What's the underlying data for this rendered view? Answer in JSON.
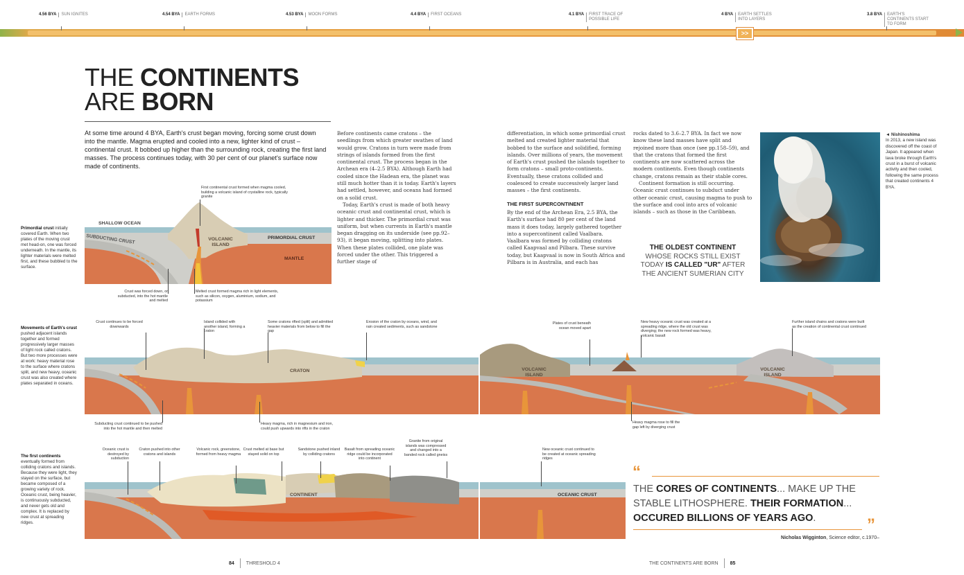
{
  "timeline": [
    {
      "date": "4.56 BYA",
      "label": "SUN IGNITES"
    },
    {
      "date": "4.54 BYA",
      "label": "EARTH FORMS"
    },
    {
      "date": "4.53 BYA",
      "label": "MOON FORMS"
    },
    {
      "date": "4.4 BYA",
      "label": "FIRST OCEANS"
    },
    {
      "date": "4.1 BYA",
      "label": "FIRST TRACE OF POSSIBLE LIFE"
    },
    {
      "date": "4 BYA",
      "label": "EARTH SETTLES INTO LAYERS"
    },
    {
      "date": "3.8 BYA",
      "label": "EARTH'S CONTINENTS START TO FORM"
    }
  ],
  "timeline_current_marker": ">>",
  "title": {
    "line1_light": "THE",
    "line1_bold": "CONTINENTS",
    "line2_light": "ARE",
    "line2_bold": "BORN"
  },
  "intro": "At some time around 4 BYA, Earth's crust began moving, forcing some crust down into the mantle. Magma erupted and cooled into a new, lighter kind of crust – continental crust. It bobbed up higher than the surrounding rock, creating the first land masses. The process continues today, with 30 per cent of our planet's surface now made of continents.",
  "body": {
    "col1_p1": "Before continents came cratons – the seedlings from which greater swathes of land would grow. Cratons in turn were made from strings of islands formed from the first continental crust. The process began in the Archean era (4–2.5 BYA). Although Earth had cooled since the Hadean era, the planet was still much hotter than it is today. Earth's layers had settled, however, and oceans had formed on a solid crust.",
    "col1_p2": "Today, Earth's crust is made of both heavy oceanic crust and continental crust, which is lighter and thicker. The primordial crust was uniform, but when currents in Earth's mantle began dragging on its underside (see pp.92–93), it began moving, splitting into plates. When these plates collided, one plate was forced under the other. This triggered a further stage of",
    "col2_p1": "differentiation, in which some primordial crust melted and created lighter material that bobbed to the surface and solidified, forming islands. Over millions of years, the movement of Earth's crust pushed the islands together to form cratons – small proto-continents. Eventually, these cratons collided and coalesced to create successively larger land masses – the first continents.",
    "col2_heading": "THE FIRST SUPERCONTINENT",
    "col2_p2": "By the end of the Archean Era, 2.5 BYA, the Earth's surface had 80 per cent of the land mass it does today, largely gathered together into a supercontinent called Vaalbara. Vaalbara was formed by colliding cratons called Kaapvaal and Pilbara. These survive today, but Kaapvaal is now in South Africa and Pilbara is in Australia, and each has",
    "col3_p1": "rocks dated to 3.6–2.7 BYA. In fact we now know these land masses have split and rejoined more than once (see pp.158–59), and that the cratons that formed the first continents are now scattered across the modern continents. Even though continents change, cratons remain as their stable cores.",
    "col3_p2": "Continent formation is still occurring. Oceanic crust continues to subduct under other oceanic crust, causing magma to push to the surface and cool into arcs of volcanic islands – such as those in the Caribbean."
  },
  "callout": {
    "bold1": "THE OLDEST CONTINENT",
    "light1": "WHOSE ROCKS STILL EXIST TODAY",
    "bold2": "IS CALLED \"UR\"",
    "light2": "AFTER THE ANCIENT SUMERIAN CITY"
  },
  "photo_caption": {
    "title": "◄ Nishinoshima",
    "text": "In 2013, a new island was discovered off the coast of Japan. It appeared when lava broke through Earth's crust in a burst of volcanic activity and then cooled, following the same process that created continents 4 BYA."
  },
  "side_notes": [
    {
      "bold": "Primordial crust",
      "text": " initially covered Earth. When two plates of the moving crust met head-on, one was forced underneath. In the mantle, its lighter materials were melted first, and these bubbled to the surface."
    },
    {
      "bold": "Movements of Earth's crust",
      "text": " pushed adjacent islands together and formed progressively larger masses of light rock called cratons. But two more processes were at work: heavy material rose to the surface where cratons split, and new heavy, oceanic crust was also created where plates separated in oceans."
    },
    {
      "bold": "The first continents",
      "text": " eventually formed from colliding cratons and islands. Because they were light, they stayed on the surface, but became composed of a growing variety of rock. Oceanic crust, being heavier, is continuously subducted, and never gets old and complex. It is replaced by new crust at spreading ridges."
    }
  ],
  "diagram1": {
    "labels": {
      "ocean": "SHALLOW OCEAN",
      "subducting": "SUBDUCTING CRUST",
      "island": "VOLCANIC ISLAND",
      "primordial": "PRIMORDIAL CRUST",
      "mantle": "MANTLE"
    },
    "annotations": {
      "top": "First continental crust formed when magma cooled, building a volcanic island of crystalline rock, typically granite",
      "bottom_left": "Crust was forced down, or subducted, into the hot mantle and melted",
      "bottom_right": "Melted crust formed magma rich in light elements, such as silicon, oxygen, aluminium, sodium, and potassium"
    }
  },
  "diagram2": {
    "labels": {
      "craton": "CRATON",
      "island1": "VOLCANIC ISLAND",
      "island2": "VOLCANIC ISLAND"
    },
    "annotations": {
      "a1": "Crust continues to be forced downwards",
      "a2": "Island collided with another island, forming a craton",
      "a3": "Some cratons rifted (split) and admitted heavier materials from below to fill the gap",
      "a4": "Erosion of the craton by oceans, wind, and rain created sediments, such as sandstone",
      "a5": "Plates of crust beneath ocean moved apart",
      "a6": "New heavy oceanic crust was created at a spreading ridge, where the old crust was diverging; the new rock formed was heavy, volcanic basalt",
      "a7": "Further island chains and cratons were built as the creation of continental crust continued",
      "b1": "Subducting crust continued to be pushed into the hot mantle and then melted",
      "b2": "Heavy magma, rich in magnesium and iron, could push upwards into rifts in the craton",
      "b3": "Heavy magma rose to fill the gap left by diverging crust"
    }
  },
  "diagram3": {
    "labels": {
      "continent": "CONTINENT",
      "oceanic": "OCEANIC CRUST"
    },
    "annotations": {
      "c1": "Oceanic crust is destroyed by subduction",
      "c2": "Craton pushed into other cratons and islands",
      "c3": "Volcanic rock, greenstone, formed from heavy magma",
      "c4": "Crust melted at base but stayed solid on top",
      "c5": "Sandstone pushed inland by colliding cratons",
      "c6": "Basalt from spreading oceanic ridge could be incorporated into continent",
      "c7": "Granite from original islands was compressed and changed into a banded rock called gneiss",
      "c8": "New oceanic crust continued to be created at oceanic spreading ridges"
    }
  },
  "quote": {
    "bold1": "CORES OF CONTINENTS",
    "light1_pre": "THE ",
    "light1_post": "... MAKE UP THE STABLE LITHOSPHERE. ",
    "bold2": "THEIR FORMATION",
    "light2": "...",
    "bold3": "OCCURED BILLIONS OF YEARS AGO",
    "end": ".",
    "author": "Nicholas Wigginton",
    "author_rest": ", Science editor, c.1970–"
  },
  "footer": {
    "left_num": "84",
    "left_label": "THRESHOLD 4",
    "right_label": "THE CONTINENTS ARE BORN",
    "right_num": "85"
  },
  "colors": {
    "orange": "#e8953a",
    "mantle": "#d9774c",
    "ocean": "#9fc3cc",
    "crust": "#c9c9c4",
    "rock": "#d8cdb4"
  }
}
